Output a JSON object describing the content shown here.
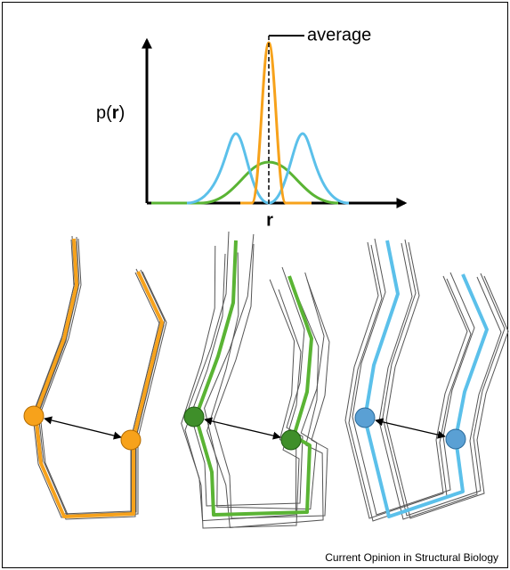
{
  "plot": {
    "average_label": "average",
    "y_axis": [
      "p(",
      "r",
      ")"
    ],
    "x_axis": "r"
  },
  "credit": "Current Opinion in Structural Biology"
}
